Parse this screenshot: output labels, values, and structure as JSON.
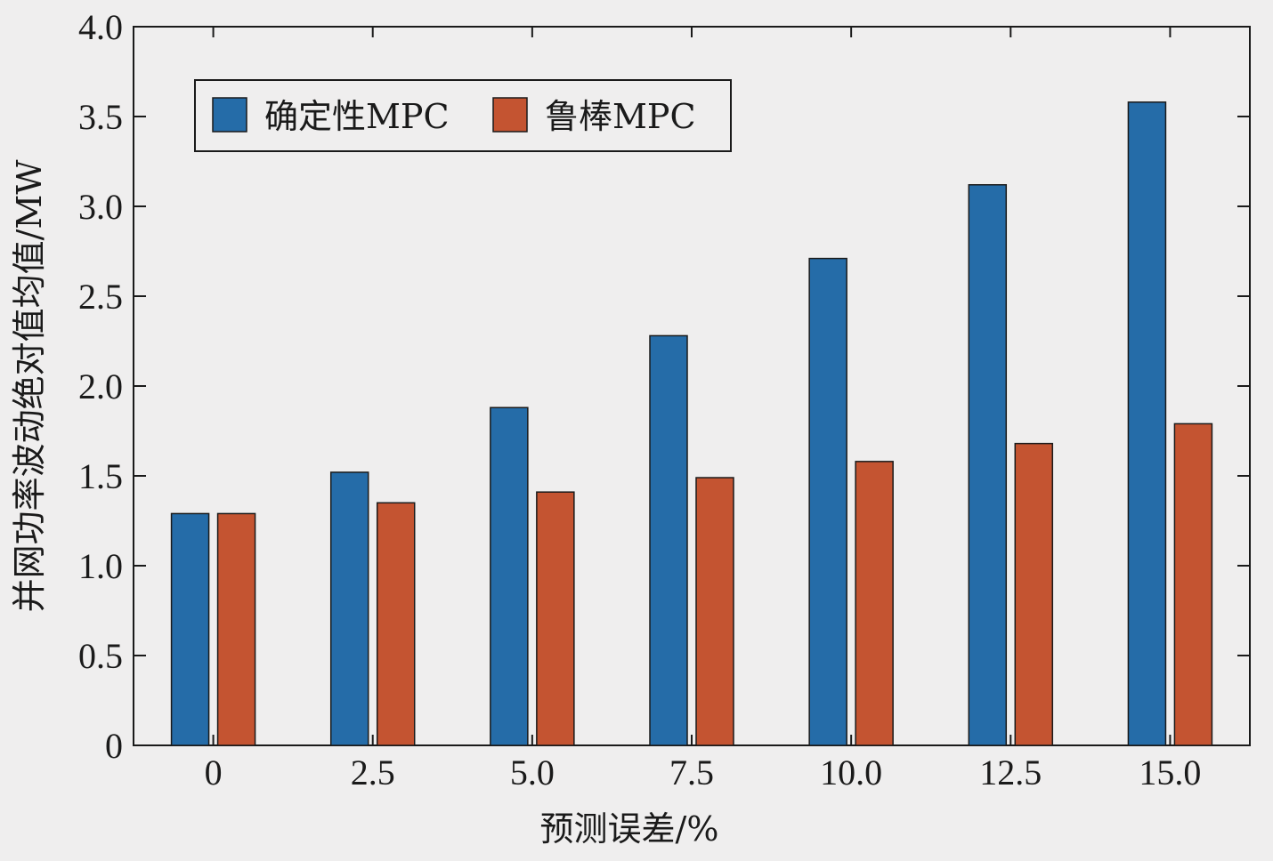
{
  "chart_data": {
    "type": "bar",
    "categories": [
      "0",
      "2.5",
      "5.0",
      "7.5",
      "10.0",
      "12.5",
      "15.0"
    ],
    "series": [
      {
        "name": "确定性MPC",
        "color": "#256ca8",
        "values": [
          1.29,
          1.52,
          1.88,
          2.28,
          2.71,
          3.12,
          3.58
        ]
      },
      {
        "name": "鲁棒MPC",
        "color": "#c45431",
        "values": [
          1.29,
          1.35,
          1.41,
          1.49,
          1.58,
          1.68,
          1.79
        ]
      }
    ],
    "xlabel": "预测误差/%",
    "ylabel": "并网功率波动绝对值均值/MW",
    "ylim": [
      0,
      4.0
    ],
    "yticks": [
      "0",
      "0.5",
      "1.0",
      "1.5",
      "2.0",
      "2.5",
      "3.0",
      "3.5",
      "4.0"
    ],
    "ytick_values": [
      0,
      0.5,
      1.0,
      1.5,
      2.0,
      2.5,
      3.0,
      3.5,
      4.0
    ],
    "grid": false,
    "legend_position": "top-left",
    "background_color": "#efeeee",
    "frame_color": "#1a1a1a"
  }
}
